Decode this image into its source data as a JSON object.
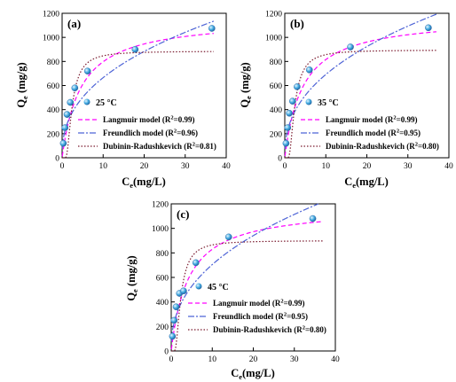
{
  "chart_data": [
    {
      "type": "scatter",
      "panel_label": "(a)",
      "annotation": "25 °C",
      "xlabel": {
        "main": "C",
        "sub": "e",
        "rest": "(mg/L)"
      },
      "ylabel": {
        "main": "Q",
        "sub": "e",
        "rest": " (mg/g)"
      },
      "xlim": [
        0,
        40
      ],
      "ylim": [
        0,
        1200
      ],
      "xticks": [
        0,
        10,
        20,
        30,
        40
      ],
      "yticks": [
        0,
        200,
        400,
        600,
        800,
        1000,
        1200
      ],
      "series": [
        {
          "name": "experimental",
          "x": [
            0.3,
            0.7,
            1.2,
            2.0,
            3.1,
            6.2,
            17.8,
            36.5
          ],
          "y": [
            120,
            250,
            360,
            460,
            580,
            720,
            900,
            1075
          ]
        },
        {
          "name": "Langmuir model (R²=0.99)",
          "model": "langmuir",
          "params": {
            "qm": 1160,
            "k": 0.22
          }
        },
        {
          "name": "Freundlich model (R²=0.96)",
          "model": "freundlich",
          "params": {
            "kf": 260,
            "n": 2.45
          }
        },
        {
          "name": "Dubinin-Radushkevich (R²=0.81)",
          "model": "dr",
          "params": {
            "qm": 885,
            "c0": 2.1
          }
        }
      ],
      "legend": [
        {
          "pre": "Langmuir model (R",
          "sup": "2",
          "post": "=0.99)"
        },
        {
          "pre": "Freundlich model (R",
          "sup": "2",
          "post": "=0.96)"
        },
        {
          "pre": "Dubinin-Radushkevich (R",
          "sup": "2",
          "post": "=0.81)"
        }
      ]
    },
    {
      "type": "scatter",
      "panel_label": "(b)",
      "annotation": "35 °C",
      "xlabel": {
        "main": "C",
        "sub": "e",
        "rest": "(mg/L)"
      },
      "ylabel": {
        "main": "Q",
        "sub": "e",
        "rest": " (mg/g)"
      },
      "xlim": [
        0,
        40
      ],
      "ylim": [
        0,
        1200
      ],
      "xticks": [
        0,
        10,
        20,
        30,
        40
      ],
      "yticks": [
        0,
        200,
        400,
        600,
        800,
        1000,
        1200
      ],
      "series": [
        {
          "name": "experimental",
          "x": [
            0.3,
            0.7,
            1.1,
            1.9,
            3.0,
            6.0,
            16.0,
            35.0
          ],
          "y": [
            120,
            250,
            370,
            470,
            590,
            730,
            920,
            1080
          ]
        },
        {
          "name": "Langmuir model (R²=0.99)",
          "model": "langmuir",
          "params": {
            "qm": 1170,
            "k": 0.23
          }
        },
        {
          "name": "Freundlich model (R²=0.95)",
          "model": "freundlich",
          "params": {
            "kf": 265,
            "n": 2.4
          }
        },
        {
          "name": "Dubinin-Radushkevich (R²=0.80)",
          "model": "dr",
          "params": {
            "qm": 895,
            "c0": 2.1
          }
        }
      ],
      "legend": [
        {
          "pre": "Langmuir model (R",
          "sup": "2",
          "post": "=0.99)"
        },
        {
          "pre": "Freundlich model (R",
          "sup": "2",
          "post": "=0.95)"
        },
        {
          "pre": "Dubinin-Radushkevich (R",
          "sup": "2",
          "post": "=0.80)"
        }
      ]
    },
    {
      "type": "scatter",
      "panel_label": "(c)",
      "annotation": "45 °C",
      "xlabel": {
        "main": "C",
        "sub": "e",
        "rest": "(mg/L)"
      },
      "ylabel": {
        "main": "Q",
        "sub": "e",
        "rest": " (mg/g)"
      },
      "xlim": [
        0,
        40
      ],
      "ylim": [
        0,
        1200
      ],
      "xticks": [
        0,
        10,
        20,
        30,
        40
      ],
      "yticks": [
        0,
        200,
        400,
        600,
        800,
        1000,
        1200
      ],
      "series": [
        {
          "name": "experimental",
          "x": [
            0.3,
            0.7,
            1.2,
            2.0,
            3.0,
            6.0,
            14.0,
            34.5
          ],
          "y": [
            120,
            250,
            360,
            470,
            490,
            720,
            930,
            1080
          ]
        },
        {
          "name": "Langmuir model (R²=0.99)",
          "model": "langmuir",
          "params": {
            "qm": 1175,
            "k": 0.24
          }
        },
        {
          "name": "Freundlich model (R²=0.95)",
          "model": "freundlich",
          "params": {
            "kf": 270,
            "n": 2.4
          }
        },
        {
          "name": "Dubinin-Radushkevich (R²=0.80)",
          "model": "dr",
          "params": {
            "qm": 900,
            "c0": 2.0
          }
        }
      ],
      "legend": [
        {
          "pre": "Langmuir model (R",
          "sup": "2",
          "post": "=0.99)"
        },
        {
          "pre": "Freundlich model (R",
          "sup": "2",
          "post": "=0.95)"
        },
        {
          "pre": "Dubinin-Radushkevich (R",
          "sup": "2",
          "post": "=0.80)"
        }
      ]
    }
  ],
  "colors": {
    "langmuir": "#ff00ff",
    "freundlich": "#4d63d6",
    "dr": "#7a1a2e",
    "marker_fill": "#3fa9e0",
    "marker_edge": "#2f5fa0"
  }
}
